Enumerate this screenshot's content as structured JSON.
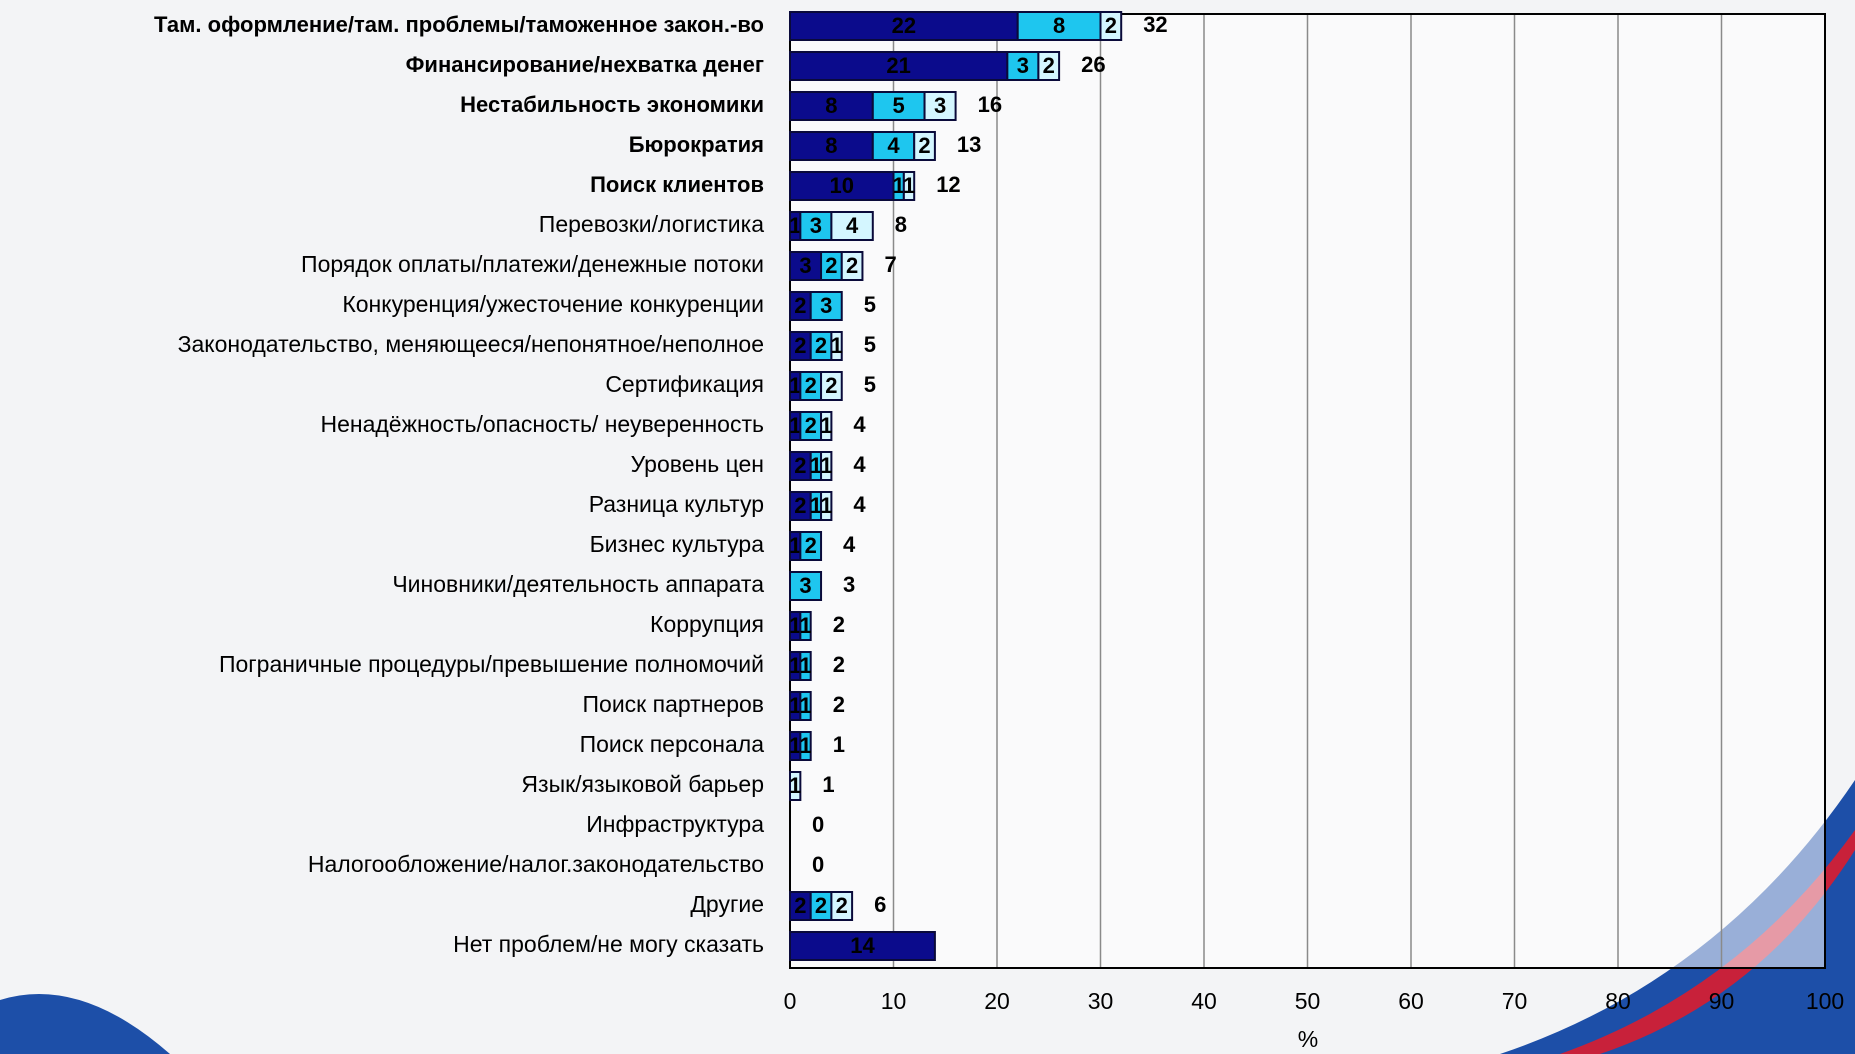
{
  "chart_data": {
    "type": "stacked-bar-horizontal",
    "categories": [
      "Там. оформление/там. проблемы/таможенное закон.-во",
      "Финансирование/нехватка денег",
      "Нестабильность экономики",
      "Бюрократия",
      "Поиск клиентов",
      "Перевозки/логистика",
      "Порядок оплаты/платежи/денежные потоки",
      "Конкуренция/ужесточение конкуренции",
      "Законодательство, меняющееся/непонятное/неполное",
      "Сертификация",
      "Ненадёжность/опасность/ неуверенность",
      "Уровень цен",
      "Разница культур",
      "Бизнес культура",
      "Чиновники/деятельность аппарата",
      "Коррупция",
      "Пограничные процедуры/превышение полномочий",
      "Поиск партнеров",
      "Поиск персонала",
      "Язык/языковой барьер",
      "Инфраструктура",
      "Налогообложение/налог.законодательство",
      "Другие",
      "Нет проблем/не могу сказать"
    ],
    "series": [
      {
        "color": "#0b0b8c",
        "values": [
          22,
          21,
          8,
          8,
          10,
          1,
          3,
          2,
          2,
          1,
          1,
          2,
          2,
          1,
          null,
          1,
          1,
          1,
          1,
          null,
          null,
          null,
          2,
          14
        ]
      },
      {
        "color": "#1ec6ef",
        "values": [
          8,
          3,
          5,
          4,
          1,
          3,
          2,
          3,
          2,
          2,
          2,
          1,
          1,
          2,
          3,
          1,
          1,
          1,
          1,
          null,
          null,
          null,
          2,
          null
        ]
      },
      {
        "color": "#d4f6ff",
        "values": [
          2,
          2,
          3,
          2,
          1,
          4,
          2,
          null,
          1,
          2,
          1,
          1,
          1,
          null,
          null,
          null,
          null,
          null,
          null,
          1,
          null,
          null,
          2,
          null
        ]
      }
    ],
    "totals": [
      32,
      26,
      16,
      13,
      12,
      8,
      7,
      5,
      5,
      5,
      4,
      4,
      4,
      4,
      3,
      2,
      2,
      2,
      1,
      1,
      0,
      0,
      6,
      null
    ],
    "xlim": [
      0,
      100
    ],
    "xticks": [
      0,
      10,
      20,
      30,
      40,
      50,
      60,
      70,
      80,
      90,
      100
    ],
    "xlabel": "%",
    "grid": true
  }
}
